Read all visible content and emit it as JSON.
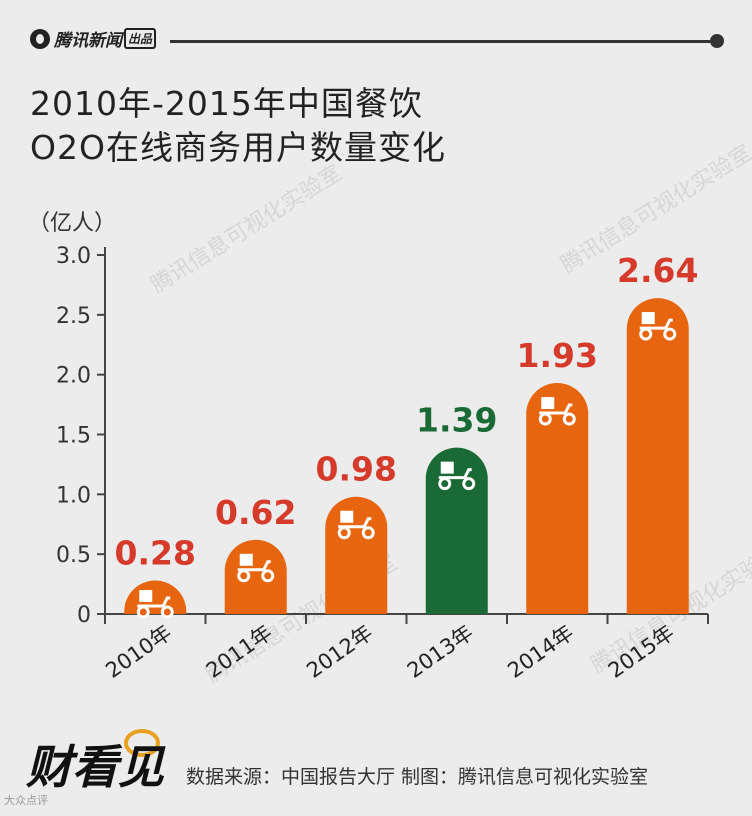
{
  "header": {
    "brand": "腾讯新闻",
    "brand_tag": "出品"
  },
  "title_lines": [
    "2010年-2015年中国餐饮",
    "O2O在线商务用户数量变化"
  ],
  "unit_label": "（亿人）",
  "colors": {
    "orange": "#e8650f",
    "green": "#1a6a35",
    "label_red": "#d63a2a",
    "label_green": "#1a6a35",
    "axis": "#444444"
  },
  "chart_data": {
    "type": "bar",
    "categories": [
      "2010年",
      "2011年",
      "2012年",
      "2013年",
      "2014年",
      "2015年"
    ],
    "values": [
      0.28,
      0.62,
      0.98,
      1.39,
      1.93,
      2.64
    ],
    "value_labels": [
      "0.28",
      "0.62",
      "0.98",
      "1.39",
      "1.93",
      "2.64"
    ],
    "highlight_index": 3,
    "ylim": [
      0,
      3.0
    ],
    "yticks": [
      "0",
      "0.5",
      "1.0",
      "1.5",
      "2.0",
      "2.5",
      "3.0"
    ],
    "ytick_values": [
      0,
      0.5,
      1.0,
      1.5,
      2.0,
      2.5,
      3.0
    ],
    "ylabel": "（亿人）",
    "xlabel": "",
    "grid": false,
    "bar_icon": "delivery-scooter-icon"
  },
  "watermark": "腾讯信息可视化实验室",
  "footer": {
    "logo_text": "财看见",
    "source": "数据来源：中国报告大厅  制图：腾讯信息可视化实验室",
    "corner_mark": "大众点评"
  }
}
